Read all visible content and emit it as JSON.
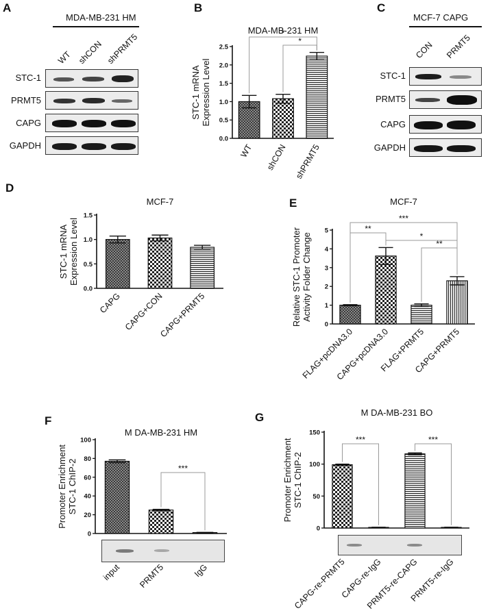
{
  "figure": {
    "A": {
      "letter": "A",
      "title": "MDA-MB-231 HM",
      "lanes": [
        "WT",
        "shCON",
        "shPRMT5"
      ],
      "rows": [
        "STC-1",
        "PRMT5",
        "CAPG",
        "GAPDH"
      ]
    },
    "B": {
      "letter": "B",
      "chart_data": {
        "type": "bar",
        "title": "MDA-MB-231 HM",
        "ylabel_line1": "STC-1 mRNA",
        "ylabel_line2": "Expression Level",
        "categories": [
          "WT",
          "shCON",
          "shPRMT5"
        ],
        "values": [
          1.0,
          1.08,
          2.24
        ],
        "errors": [
          0.17,
          0.12,
          0.1
        ],
        "patterns": [
          "dots",
          "checker",
          "hlines"
        ],
        "ylim": [
          0,
          2.5
        ],
        "yticks": [
          "0.0",
          "0.5",
          "1.0",
          "1.5",
          "2.0",
          "2.5"
        ],
        "significance": [
          {
            "from": 0,
            "to": 2,
            "label": "*"
          },
          {
            "from": 1,
            "to": 2,
            "label": "*"
          }
        ]
      }
    },
    "C": {
      "letter": "C",
      "title": "MCF-7 CAPG",
      "lanes": [
        "CON",
        "PRMT5"
      ],
      "rows": [
        "STC-1",
        "PRMT5",
        "CAPG",
        "GAPDH"
      ]
    },
    "D": {
      "letter": "D",
      "chart_data": {
        "type": "bar",
        "title": "MCF-7",
        "ylabel_line1": "STC-1 mRNA",
        "ylabel_line2": "Expression Level",
        "categories": [
          "CAPG",
          "CAPG+CON",
          "CAPG+PRMT5"
        ],
        "values": [
          1.0,
          1.03,
          0.84
        ],
        "errors": [
          0.07,
          0.06,
          0.04
        ],
        "patterns": [
          "dots",
          "checker",
          "hlines"
        ],
        "ylim": [
          0,
          1.5
        ],
        "yticks": [
          "0.0",
          "0.5",
          "1.0",
          "1.5"
        ],
        "significance": []
      }
    },
    "E": {
      "letter": "E",
      "chart_data": {
        "type": "bar",
        "title": "MCF-7",
        "ylabel_line1": "Relative STC-1 Promoter",
        "ylabel_line2": "Activity Folder Change",
        "categories": [
          "FLAG+pcDNA3.0",
          "CAPG+pcDNA3.0",
          "FLAG+PRMT5",
          "CAPG+PRMT5"
        ],
        "values": [
          1.0,
          3.62,
          1.0,
          2.3
        ],
        "errors": [
          0.03,
          0.45,
          0.07,
          0.22
        ],
        "patterns": [
          "dots",
          "checker",
          "hlines",
          "vlines"
        ],
        "ylim": [
          0,
          5
        ],
        "yticks": [
          "0",
          "1",
          "2",
          "3",
          "4",
          "5"
        ],
        "significance": [
          {
            "from": 0,
            "to": 1,
            "label": "**"
          },
          {
            "from": 0,
            "to": 3,
            "label": "***"
          },
          {
            "from": 1,
            "to": 3,
            "label": "*"
          },
          {
            "from": 2,
            "to": 3,
            "label": "**"
          }
        ]
      }
    },
    "F": {
      "letter": "F",
      "chart_data": {
        "type": "bar",
        "title": "M DA-MB-231 HM",
        "ylabel_line1": "Promoter Enrichment",
        "ylabel_line2": "STC-1 ChIP-2",
        "categories": [
          "input",
          "PRMT5",
          "IgG"
        ],
        "values": [
          77,
          25,
          1
        ],
        "errors": [
          1.5,
          0.8,
          0.2
        ],
        "patterns": [
          "dots",
          "checker",
          "hlines"
        ],
        "ylim": [
          0,
          100
        ],
        "yticks": [
          "0",
          "20",
          "40",
          "60",
          "80",
          "100"
        ],
        "significance": [
          {
            "from": 1,
            "to": 2,
            "label": "***"
          }
        ]
      }
    },
    "G": {
      "letter": "G",
      "chart_data": {
        "type": "bar",
        "title": "M DA-MB-231 BO",
        "ylabel_line1": "Promoter Enrichment",
        "ylabel_line2": "STC-1 ChIP-2",
        "categories": [
          "CAPG-re-PRMT5",
          "CAPG-re-IgG",
          "PRMT5-re-CAPG",
          "PRMT5-re-IgG"
        ],
        "values": [
          99,
          1,
          116,
          1
        ],
        "errors": [
          1,
          0.2,
          1.5,
          0.2
        ],
        "patterns": [
          "checker",
          "checker",
          "hlines",
          "hlines"
        ],
        "ylim": [
          0,
          150
        ],
        "yticks": [
          "0",
          "50",
          "100",
          "150"
        ],
        "significance": [
          {
            "from": 0,
            "to": 1,
            "label": "***"
          },
          {
            "from": 2,
            "to": 3,
            "label": "***"
          }
        ]
      }
    }
  }
}
